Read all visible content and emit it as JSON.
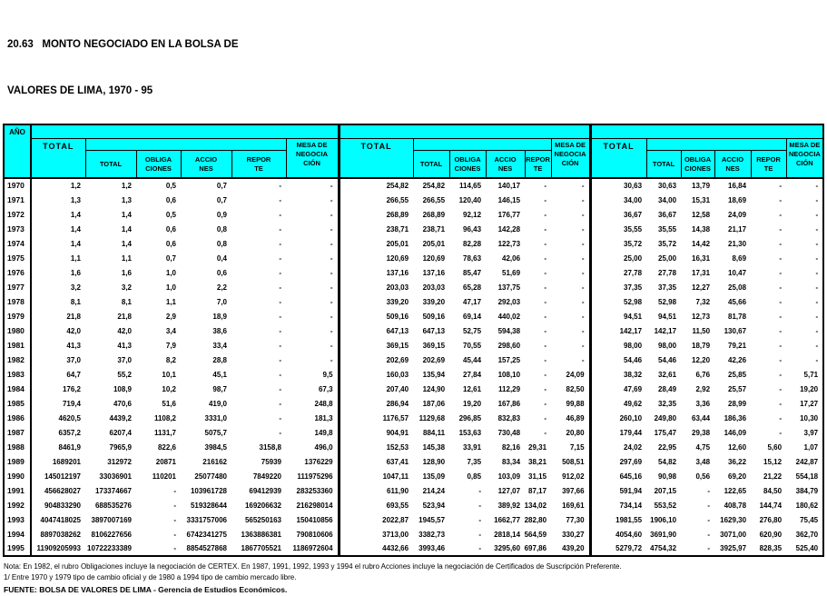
{
  "title": {
    "line1": "20.63   MONTO NEGOCIADO EN LA BOLSA DE",
    "line2": "VALORES DE LIMA, 1970 - 95"
  },
  "colors": {
    "header_bg": "#00ffff",
    "border": "#000000",
    "page_bg": "#ffffff"
  },
  "header": {
    "year": "AÑO",
    "group_total": "TOTAL",
    "sub_total": "TOTAL",
    "obligaciones": "OBLIGA\nCIONES",
    "acciones": "ACCIO\nNES",
    "reporte": "REPOR\nTE",
    "mesa": "MESA DE\nNEGOCIA\nCIÓN"
  },
  "rows": [
    {
      "year": "1970",
      "cells": [
        "1,2",
        "1,2",
        "0,5",
        "0,7",
        "-",
        "-",
        "254,82",
        "254,82",
        "114,65",
        "140,17",
        "-",
        "-",
        "30,63",
        "30,63",
        "13,79",
        "16,84",
        "-",
        "-"
      ]
    },
    {
      "year": "1971",
      "cells": [
        "1,3",
        "1,3",
        "0,6",
        "0,7",
        "-",
        "-",
        "266,55",
        "266,55",
        "120,40",
        "146,15",
        "-",
        "-",
        "34,00",
        "34,00",
        "15,31",
        "18,69",
        "-",
        "-"
      ]
    },
    {
      "year": "1972",
      "cells": [
        "1,4",
        "1,4",
        "0,5",
        "0,9",
        "-",
        "-",
        "268,89",
        "268,89",
        "92,12",
        "176,77",
        "-",
        "-",
        "36,67",
        "36,67",
        "12,58",
        "24,09",
        "-",
        "-"
      ]
    },
    {
      "year": "1973",
      "cells": [
        "1,4",
        "1,4",
        "0,6",
        "0,8",
        "-",
        "-",
        "238,71",
        "238,71",
        "96,43",
        "142,28",
        "-",
        "-",
        "35,55",
        "35,55",
        "14,38",
        "21,17",
        "-",
        "-"
      ]
    },
    {
      "year": "1974",
      "cells": [
        "1,4",
        "1,4",
        "0,6",
        "0,8",
        "-",
        "-",
        "205,01",
        "205,01",
        "82,28",
        "122,73",
        "-",
        "-",
        "35,72",
        "35,72",
        "14,42",
        "21,30",
        "-",
        "-"
      ]
    },
    {
      "year": "1975",
      "cells": [
        "1,1",
        "1,1",
        "0,7",
        "0,4",
        "-",
        "-",
        "120,69",
        "120,69",
        "78,63",
        "42,06",
        "-",
        "-",
        "25,00",
        "25,00",
        "16,31",
        "8,69",
        "-",
        "-"
      ]
    },
    {
      "year": "1976",
      "cells": [
        "1,6",
        "1,6",
        "1,0",
        "0,6",
        "-",
        "-",
        "137,16",
        "137,16",
        "85,47",
        "51,69",
        "-",
        "-",
        "27,78",
        "27,78",
        "17,31",
        "10,47",
        "-",
        "-"
      ]
    },
    {
      "year": "1977",
      "cells": [
        "3,2",
        "3,2",
        "1,0",
        "2,2",
        "-",
        "-",
        "203,03",
        "203,03",
        "65,28",
        "137,75",
        "-",
        "-",
        "37,35",
        "37,35",
        "12,27",
        "25,08",
        "-",
        "-"
      ]
    },
    {
      "year": "1978",
      "cells": [
        "8,1",
        "8,1",
        "1,1",
        "7,0",
        "-",
        "-",
        "339,20",
        "339,20",
        "47,17",
        "292,03",
        "-",
        "-",
        "52,98",
        "52,98",
        "7,32",
        "45,66",
        "-",
        "-"
      ]
    },
    {
      "year": "1979",
      "cells": [
        "21,8",
        "21,8",
        "2,9",
        "18,9",
        "-",
        "-",
        "509,16",
        "509,16",
        "69,14",
        "440,02",
        "-",
        "-",
        "94,51",
        "94,51",
        "12,73",
        "81,78",
        "-",
        "-"
      ]
    },
    {
      "year": "1980",
      "cells": [
        "42,0",
        "42,0",
        "3,4",
        "38,6",
        "-",
        "-",
        "647,13",
        "647,13",
        "52,75",
        "594,38",
        "-",
        "-",
        "142,17",
        "142,17",
        "11,50",
        "130,67",
        "-",
        "-"
      ]
    },
    {
      "year": "1981",
      "cells": [
        "41,3",
        "41,3",
        "7,9",
        "33,4",
        "-",
        "-",
        "369,15",
        "369,15",
        "70,55",
        "298,60",
        "-",
        "-",
        "98,00",
        "98,00",
        "18,79",
        "79,21",
        "-",
        "-"
      ]
    },
    {
      "year": "1982",
      "cells": [
        "37,0",
        "37,0",
        "8,2",
        "28,8",
        "-",
        "-",
        "202,69",
        "202,69",
        "45,44",
        "157,25",
        "-",
        "-",
        "54,46",
        "54,46",
        "12,20",
        "42,26",
        "-",
        "-"
      ]
    },
    {
      "year": "1983",
      "cells": [
        "64,7",
        "55,2",
        "10,1",
        "45,1",
        "-",
        "9,5",
        "160,03",
        "135,94",
        "27,84",
        "108,10",
        "-",
        "24,09",
        "38,32",
        "32,61",
        "6,76",
        "25,85",
        "-",
        "5,71"
      ]
    },
    {
      "year": "1984",
      "cells": [
        "176,2",
        "108,9",
        "10,2",
        "98,7",
        "-",
        "67,3",
        "207,40",
        "124,90",
        "12,61",
        "112,29",
        "-",
        "82,50",
        "47,69",
        "28,49",
        "2,92",
        "25,57",
        "-",
        "19,20"
      ]
    },
    {
      "year": "1985",
      "cells": [
        "719,4",
        "470,6",
        "51,6",
        "419,0",
        "-",
        "248,8",
        "286,94",
        "187,06",
        "19,20",
        "167,86",
        "-",
        "99,88",
        "49,62",
        "32,35",
        "3,36",
        "28,99",
        "-",
        "17,27"
      ]
    },
    {
      "year": "1986",
      "cells": [
        "4620,5",
        "4439,2",
        "1108,2",
        "3331,0",
        "-",
        "181,3",
        "1176,57",
        "1129,68",
        "296,85",
        "832,83",
        "-",
        "46,89",
        "260,10",
        "249,80",
        "63,44",
        "186,36",
        "-",
        "10,30"
      ]
    },
    {
      "year": "1987",
      "cells": [
        "6357,2",
        "6207,4",
        "1131,7",
        "5075,7",
        "-",
        "149,8",
        "904,91",
        "884,11",
        "153,63",
        "730,48",
        "-",
        "20,80",
        "179,44",
        "175,47",
        "29,38",
        "146,09",
        "-",
        "3,97"
      ]
    },
    {
      "year": "1988",
      "cells": [
        "8461,9",
        "7965,9",
        "822,6",
        "3984,5",
        "3158,8",
        "496,0",
        "152,53",
        "145,38",
        "33,91",
        "82,16",
        "29,31",
        "7,15",
        "24,02",
        "22,95",
        "4,75",
        "12,60",
        "5,60",
        "1,07"
      ]
    },
    {
      "year": "1989",
      "cells": [
        "1689201",
        "312972",
        "20871",
        "216162",
        "75939",
        "1376229",
        "637,41",
        "128,90",
        "7,35",
        "83,34",
        "38,21",
        "508,51",
        "297,69",
        "54,82",
        "3,48",
        "36,22",
        "15,12",
        "242,87"
      ]
    },
    {
      "year": "1990",
      "cells": [
        "145012197",
        "33036901",
        "110201",
        "25077480",
        "7849220",
        "111975296",
        "1047,11",
        "135,09",
        "0,85",
        "103,09",
        "31,15",
        "912,02",
        "645,16",
        "90,98",
        "0,56",
        "69,20",
        "21,22",
        "554,18"
      ]
    },
    {
      "year": "1991",
      "cells": [
        "456628027",
        "173374667",
        "-",
        "103961728",
        "69412939",
        "283253360",
        "611,90",
        "214,24",
        "-",
        "127,07",
        "87,17",
        "397,66",
        "591,94",
        "207,15",
        "-",
        "122,65",
        "84,50",
        "384,79"
      ]
    },
    {
      "year": "1992",
      "cells": [
        "904833290",
        "688535276",
        "-",
        "519328644",
        "169206632",
        "216298014",
        "693,55",
        "523,94",
        "-",
        "389,92",
        "134,02",
        "169,61",
        "734,14",
        "553,52",
        "-",
        "408,78",
        "144,74",
        "180,62"
      ]
    },
    {
      "year": "1993",
      "cells": [
        "4047418025",
        "3897007169",
        "-",
        "3331757006",
        "565250163",
        "150410856",
        "2022,87",
        "1945,57",
        "-",
        "1662,77",
        "282,80",
        "77,30",
        "1981,55",
        "1906,10",
        "-",
        "1629,30",
        "276,80",
        "75,45"
      ]
    },
    {
      "year": "1994",
      "cells": [
        "8897038262",
        "8106227656",
        "-",
        "6742341275",
        "1363886381",
        "790810606",
        "3713,00",
        "3382,73",
        "-",
        "2818,14",
        "564,59",
        "330,27",
        "4054,60",
        "3691,90",
        "-",
        "3071,00",
        "620,90",
        "362,70"
      ]
    },
    {
      "year": "1995",
      "cells": [
        "11909205993",
        "10722233389",
        "-",
        "8854527868",
        "1867705521",
        "1186972604",
        "4432,66",
        "3993,46",
        "-",
        "3295,60",
        "697,86",
        "439,20",
        "5279,72",
        "4754,32",
        "-",
        "3925,97",
        "828,35",
        "525,40"
      ]
    }
  ],
  "notes": {
    "nota": "Nota: En 1982, el rubro Obligaciones incluye la negociación de CERTEX. En 1987, 1991, 1992, 1993 y 1994 el rubro Acciones incluye la negociación de Certificados de Suscripción Preferente.",
    "tipo_cambio": "1/ Entre 1970 y 1979 tipo de cambio oficial y de 1980 a 1994 tipo de cambio mercado libre.",
    "fuente": "FUENTE: BOLSA DE VALORES DE LIMA - Gerencia de Estudios Económicos."
  }
}
